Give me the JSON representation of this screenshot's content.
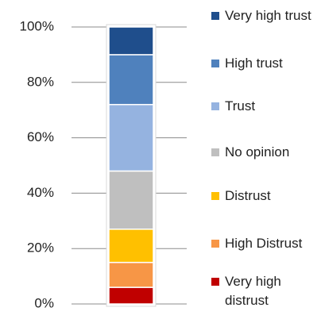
{
  "chart_data": {
    "type": "stacked_bar",
    "categories": [
      null
    ],
    "series": [
      {
        "name": "Very high distrust",
        "color": "#c00000",
        "values": [
          6
        ]
      },
      {
        "name": "High Distrust",
        "color": "#f79646",
        "values": [
          9
        ]
      },
      {
        "name": "Distrust",
        "color": "#ffc000",
        "values": [
          12
        ]
      },
      {
        "name": "No opinion",
        "color": "#bfbfbf",
        "values": [
          21
        ]
      },
      {
        "name": "Trust",
        "color": "#95b3e0",
        "values": [
          24
        ]
      },
      {
        "name": "High trust",
        "color": "#4f81bd",
        "values": [
          18
        ]
      },
      {
        "name": "Very high trust",
        "color": "#1f4e8c",
        "values": [
          10
        ]
      }
    ],
    "ylim": [
      0,
      100
    ],
    "yticks": [
      {
        "value": 0,
        "label": "0%"
      },
      {
        "value": 20,
        "label": "20%"
      },
      {
        "value": 40,
        "label": "40%"
      },
      {
        "value": 60,
        "label": "60%"
      },
      {
        "value": 80,
        "label": "80%"
      },
      {
        "value": 100,
        "label": "100%"
      }
    ],
    "grid": true,
    "legend": "right"
  }
}
